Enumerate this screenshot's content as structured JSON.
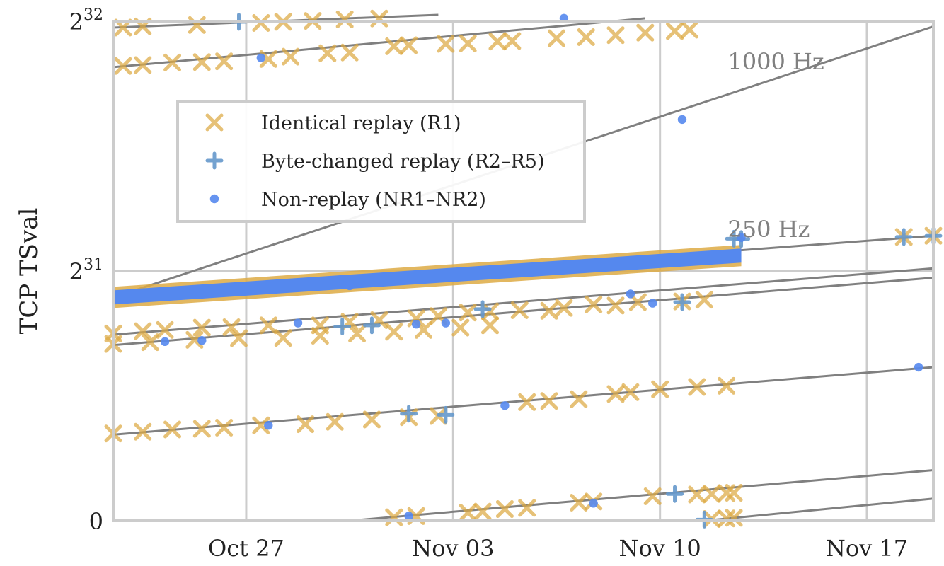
{
  "chart_data": {
    "type": "scatter",
    "title": "",
    "xlabel": "",
    "ylabel": "TCP TSval",
    "x_axis": {
      "type": "date",
      "range": [
        "2020-10-22T12:00",
        "2020-11-19T06:00"
      ],
      "ticks": [
        {
          "date": "2020-10-27",
          "label": "Oct 27"
        },
        {
          "date": "2020-11-03",
          "label": "Nov 03"
        },
        {
          "date": "2020-11-10",
          "label": "Nov 10"
        },
        {
          "date": "2020-11-17",
          "label": "Nov 17"
        }
      ]
    },
    "y_axis": {
      "range": [
        0,
        4294967296
      ],
      "ticks": [
        {
          "value": 0,
          "base": "0",
          "exp": ""
        },
        {
          "value": 2147483648,
          "base": "2",
          "exp": "31"
        },
        {
          "value": 4294967296,
          "base": "2",
          "exp": "32"
        }
      ]
    },
    "grid": true,
    "legend": {
      "placement": "upper-left",
      "entries": [
        {
          "label": "Identical replay (R1)",
          "marker": "x",
          "color": "#DDAA44"
        },
        {
          "label": "Byte-changed replay (R2–R5)",
          "marker": "+",
          "color": "#6699CC"
        },
        {
          "label": "Non-replay (NR1–NR2)",
          "marker": "o",
          "color": "#5588EE"
        }
      ]
    },
    "annotations": [
      {
        "text": "1000 Hz",
        "x": "2020-11-12T07:00",
        "y": 3880000000
      },
      {
        "text": "250 Hz",
        "x": "2020-11-12T07:00",
        "y": 2440000000
      }
    ],
    "reference_lines": [
      {
        "x": [
          "2020-10-22T12:00",
          "2020-11-02T12:00"
        ],
        "y": [
          4240000000,
          4350000000
        ]
      },
      {
        "x": [
          "2020-10-22T12:00",
          "2020-11-09T12:00"
        ],
        "y": [
          3900000000,
          4320000000
        ]
      },
      {
        "x": [
          "2020-10-22T12:00",
          "2020-11-19T06:00"
        ],
        "y": [
          1920000000,
          4250000000
        ]
      },
      {
        "x": [
          "2020-10-22T12:00",
          "2020-11-19T06:00"
        ],
        "y": [
          1920000000,
          2450000000
        ]
      },
      {
        "x": [
          "2020-10-22T12:00",
          "2020-11-19T06:00"
        ],
        "y": [
          1600000000,
          2170000000
        ]
      },
      {
        "x": [
          "2020-10-22T12:00",
          "2020-11-19T06:00"
        ],
        "y": [
          1510000000,
          2090000000
        ]
      },
      {
        "x": [
          "2020-10-22T12:00",
          "2020-11-19T06:00"
        ],
        "y": [
          740000000,
          1320000000
        ]
      },
      {
        "x": [
          "2020-10-30T12:00",
          "2020-11-19T06:00"
        ],
        "y": [
          0,
          435000000
        ]
      },
      {
        "x": [
          "2020-11-11T12:00",
          "2020-11-19T06:00"
        ],
        "y": [
          0,
          190000000
        ]
      }
    ],
    "series": [
      {
        "name": "Identical replay (R1)",
        "marker": "x",
        "color": "#DDAA44",
        "points": [
          [
            "2020-10-22T20:00",
            4240000000
          ],
          [
            "2020-10-23T12:00",
            4250000000
          ],
          [
            "2020-10-25T08:00",
            4262000000
          ],
          [
            "2020-10-27T12:00",
            4280000000
          ],
          [
            "2020-10-28T06:00",
            4290000000
          ],
          [
            "2020-10-29T06:00",
            4297000000
          ],
          [
            "2020-10-30T08:00",
            4310000000
          ],
          [
            "2020-10-31T12:00",
            4318000000
          ],
          [
            "2020-10-22T20:00",
            3910000000
          ],
          [
            "2020-10-23T12:00",
            3918000000
          ],
          [
            "2020-10-24T12:00",
            3940000000
          ],
          [
            "2020-10-25T12:00",
            3944000000
          ],
          [
            "2020-10-26T06:00",
            3950000000
          ],
          [
            "2020-10-27T18:00",
            3970000000
          ],
          [
            "2020-10-28T12:00",
            3990000000
          ],
          [
            "2020-10-29T18:00",
            4020000000
          ],
          [
            "2020-10-30T12:00",
            4026000000
          ],
          [
            "2020-11-01T00:00",
            4080000000
          ],
          [
            "2020-11-01T12:00",
            4088000000
          ],
          [
            "2020-11-02T18:00",
            4100000000
          ],
          [
            "2020-11-03T12:00",
            4104000000
          ],
          [
            "2020-11-04T12:00",
            4120000000
          ],
          [
            "2020-11-05T00:00",
            4125000000
          ],
          [
            "2020-11-06T12:00",
            4148000000
          ],
          [
            "2020-11-07T12:00",
            4158000000
          ],
          [
            "2020-11-08T12:00",
            4175000000
          ],
          [
            "2020-11-09T12:00",
            4196000000
          ],
          [
            "2020-11-10T12:00",
            4210000000
          ],
          [
            "2020-11-11T00:00",
            4222000000
          ],
          [
            "2020-10-22T12:00",
            1610000000
          ],
          [
            "2020-10-23T12:00",
            1630000000
          ],
          [
            "2020-10-24T06:00",
            1640000000
          ],
          [
            "2020-10-25T12:00",
            1660000000
          ],
          [
            "2020-10-26T12:00",
            1664000000
          ],
          [
            "2020-10-27T18:00",
            1680000000
          ],
          [
            "2020-10-29T12:00",
            1680000000
          ],
          [
            "2020-10-30T12:00",
            1710000000
          ],
          [
            "2020-10-31T12:00",
            1725000000
          ],
          [
            "2020-11-01T18:00",
            1740000000
          ],
          [
            "2020-11-02T12:00",
            1760000000
          ],
          [
            "2020-11-03T12:00",
            1790000000
          ],
          [
            "2020-11-04T06:00",
            1800000000
          ],
          [
            "2020-11-05T06:00",
            1810000000
          ],
          [
            "2020-11-06T06:00",
            1805000000
          ],
          [
            "2020-11-06T18:00",
            1830000000
          ],
          [
            "2020-11-07T18:00",
            1860000000
          ],
          [
            "2020-11-08T12:00",
            1850000000
          ],
          [
            "2020-11-09T06:00",
            1880000000
          ],
          [
            "2020-11-10T18:00",
            1885000000
          ],
          [
            "2020-11-11T12:00",
            1900000000
          ],
          [
            "2020-10-22T12:00",
            1520000000
          ],
          [
            "2020-10-23T18:00",
            1535000000
          ],
          [
            "2020-10-25T06:00",
            1555000000
          ],
          [
            "2020-10-26T18:00",
            1570000000
          ],
          [
            "2020-10-28T06:00",
            1572000000
          ],
          [
            "2020-10-29T12:00",
            1590000000
          ],
          [
            "2020-10-30T18:00",
            1610000000
          ],
          [
            "2020-11-01T00:00",
            1625000000
          ],
          [
            "2020-11-02T00:00",
            1640000000
          ],
          [
            "2020-11-03T06:00",
            1660000000
          ],
          [
            "2020-11-04T06:00",
            1680000000
          ],
          [
            "2020-10-22T12:00",
            750000000
          ],
          [
            "2020-10-23T12:00",
            765000000
          ],
          [
            "2020-10-24T12:00",
            785000000
          ],
          [
            "2020-10-25T12:00",
            790000000
          ],
          [
            "2020-10-26T06:00",
            800000000
          ],
          [
            "2020-10-27T12:00",
            820000000
          ],
          [
            "2020-10-29T00:00",
            830000000
          ],
          [
            "2020-10-30T00:00",
            850000000
          ],
          [
            "2020-10-31T06:00",
            870000000
          ],
          [
            "2020-11-01T12:00",
            890000000
          ],
          [
            "2020-11-02T12:00",
            900000000
          ],
          [
            "2020-11-05T12:00",
            1020000000
          ],
          [
            "2020-11-06T06:00",
            1030000000
          ],
          [
            "2020-11-07T06:00",
            1045000000
          ],
          [
            "2020-11-08T12:00",
            1090000000
          ],
          [
            "2020-11-09T00:00",
            1105000000
          ],
          [
            "2020-11-10T00:00",
            1130000000
          ],
          [
            "2020-11-11T06:00",
            1150000000
          ],
          [
            "2020-11-12T06:00",
            1160000000
          ],
          [
            "2020-11-01T00:00",
            30000000
          ],
          [
            "2020-11-01T18:00",
            40000000
          ],
          [
            "2020-11-03T12:00",
            70000000
          ],
          [
            "2020-11-04T00:00",
            78000000
          ],
          [
            "2020-11-04T18:00",
            100000000
          ],
          [
            "2020-11-05T12:00",
            110000000
          ],
          [
            "2020-11-07T06:00",
            155000000
          ],
          [
            "2020-11-07T18:00",
            165000000
          ],
          [
            "2020-11-09T18:00",
            210000000
          ],
          [
            "2020-11-11T06:00",
            225000000
          ],
          [
            "2020-11-11T18:00",
            230000000
          ],
          [
            "2020-11-12T06:00",
            238000000
          ],
          [
            "2020-11-12T12:00",
            240000000
          ],
          [
            "2020-11-11T18:00",
            15000000
          ],
          [
            "2020-11-12T06:00",
            20000000
          ],
          [
            "2020-11-12T12:00",
            25000000
          ],
          [
            "2020-11-18T06:00",
            2440000000
          ],
          [
            "2020-11-19T06:00",
            2450000000
          ]
        ]
      },
      {
        "name": "Byte-changed replay (R2–R5)",
        "marker": "+",
        "color": "#6699CC",
        "points": [
          [
            "2020-10-26T18:00",
            4290000000
          ],
          [
            "2020-10-30T06:00",
            1670000000
          ],
          [
            "2020-10-31T06:00",
            1680000000
          ],
          [
            "2020-11-01T12:00",
            920000000
          ],
          [
            "2020-11-02T18:00",
            910000000
          ],
          [
            "2020-11-04T00:00",
            1820000000
          ],
          [
            "2020-11-10T18:00",
            1880000000
          ],
          [
            "2020-11-10T12:00",
            230000000
          ],
          [
            "2020-11-11T12:00",
            10000000
          ],
          [
            "2020-11-12T12:00",
            2425000000
          ],
          [
            "2020-11-12T18:00",
            2422000000
          ],
          [
            "2020-11-18T06:00",
            2440000000
          ],
          [
            "2020-11-19T06:00",
            2450000000
          ]
        ]
      },
      {
        "name": "Non-replay (NR1–NR2)",
        "marker": "o",
        "color": "#5588EE",
        "points": [
          [
            "2020-10-27T12:00",
            3980000000
          ],
          [
            "2020-11-06T18:00",
            4320000000
          ],
          [
            "2020-11-10T18:00",
            3450000000
          ],
          [
            "2020-10-24T06:00",
            1540000000
          ],
          [
            "2020-10-25T12:00",
            1550000000
          ],
          [
            "2020-10-28T18:00",
            1700000000
          ],
          [
            "2020-11-01T18:00",
            1690000000
          ],
          [
            "2020-11-02T18:00",
            1700000000
          ],
          [
            "2020-10-27T18:00",
            820000000
          ],
          [
            "2020-11-04T18:00",
            990000000
          ],
          [
            "2020-11-01T12:00",
            40000000
          ],
          [
            "2020-11-07T18:00",
            150000000
          ],
          [
            "2020-11-09T18:00",
            1870000000
          ],
          [
            "2020-11-09T00:00",
            1950000000
          ],
          [
            "2020-11-18T18:00",
            1320000000
          ],
          [
            "2020-10-30T12:00",
            2020000000
          ],
          [
            "2020-11-12T18:00",
            2435000000
          ]
        ]
      }
    ],
    "dense_bands": [
      {
        "x": [
          "2020-10-22T12:00",
          "2020-11-12T18:00"
        ],
        "y": [
          1920000000,
          2280000000
        ],
        "series": "Non-replay (NR1–NR2)"
      }
    ]
  }
}
